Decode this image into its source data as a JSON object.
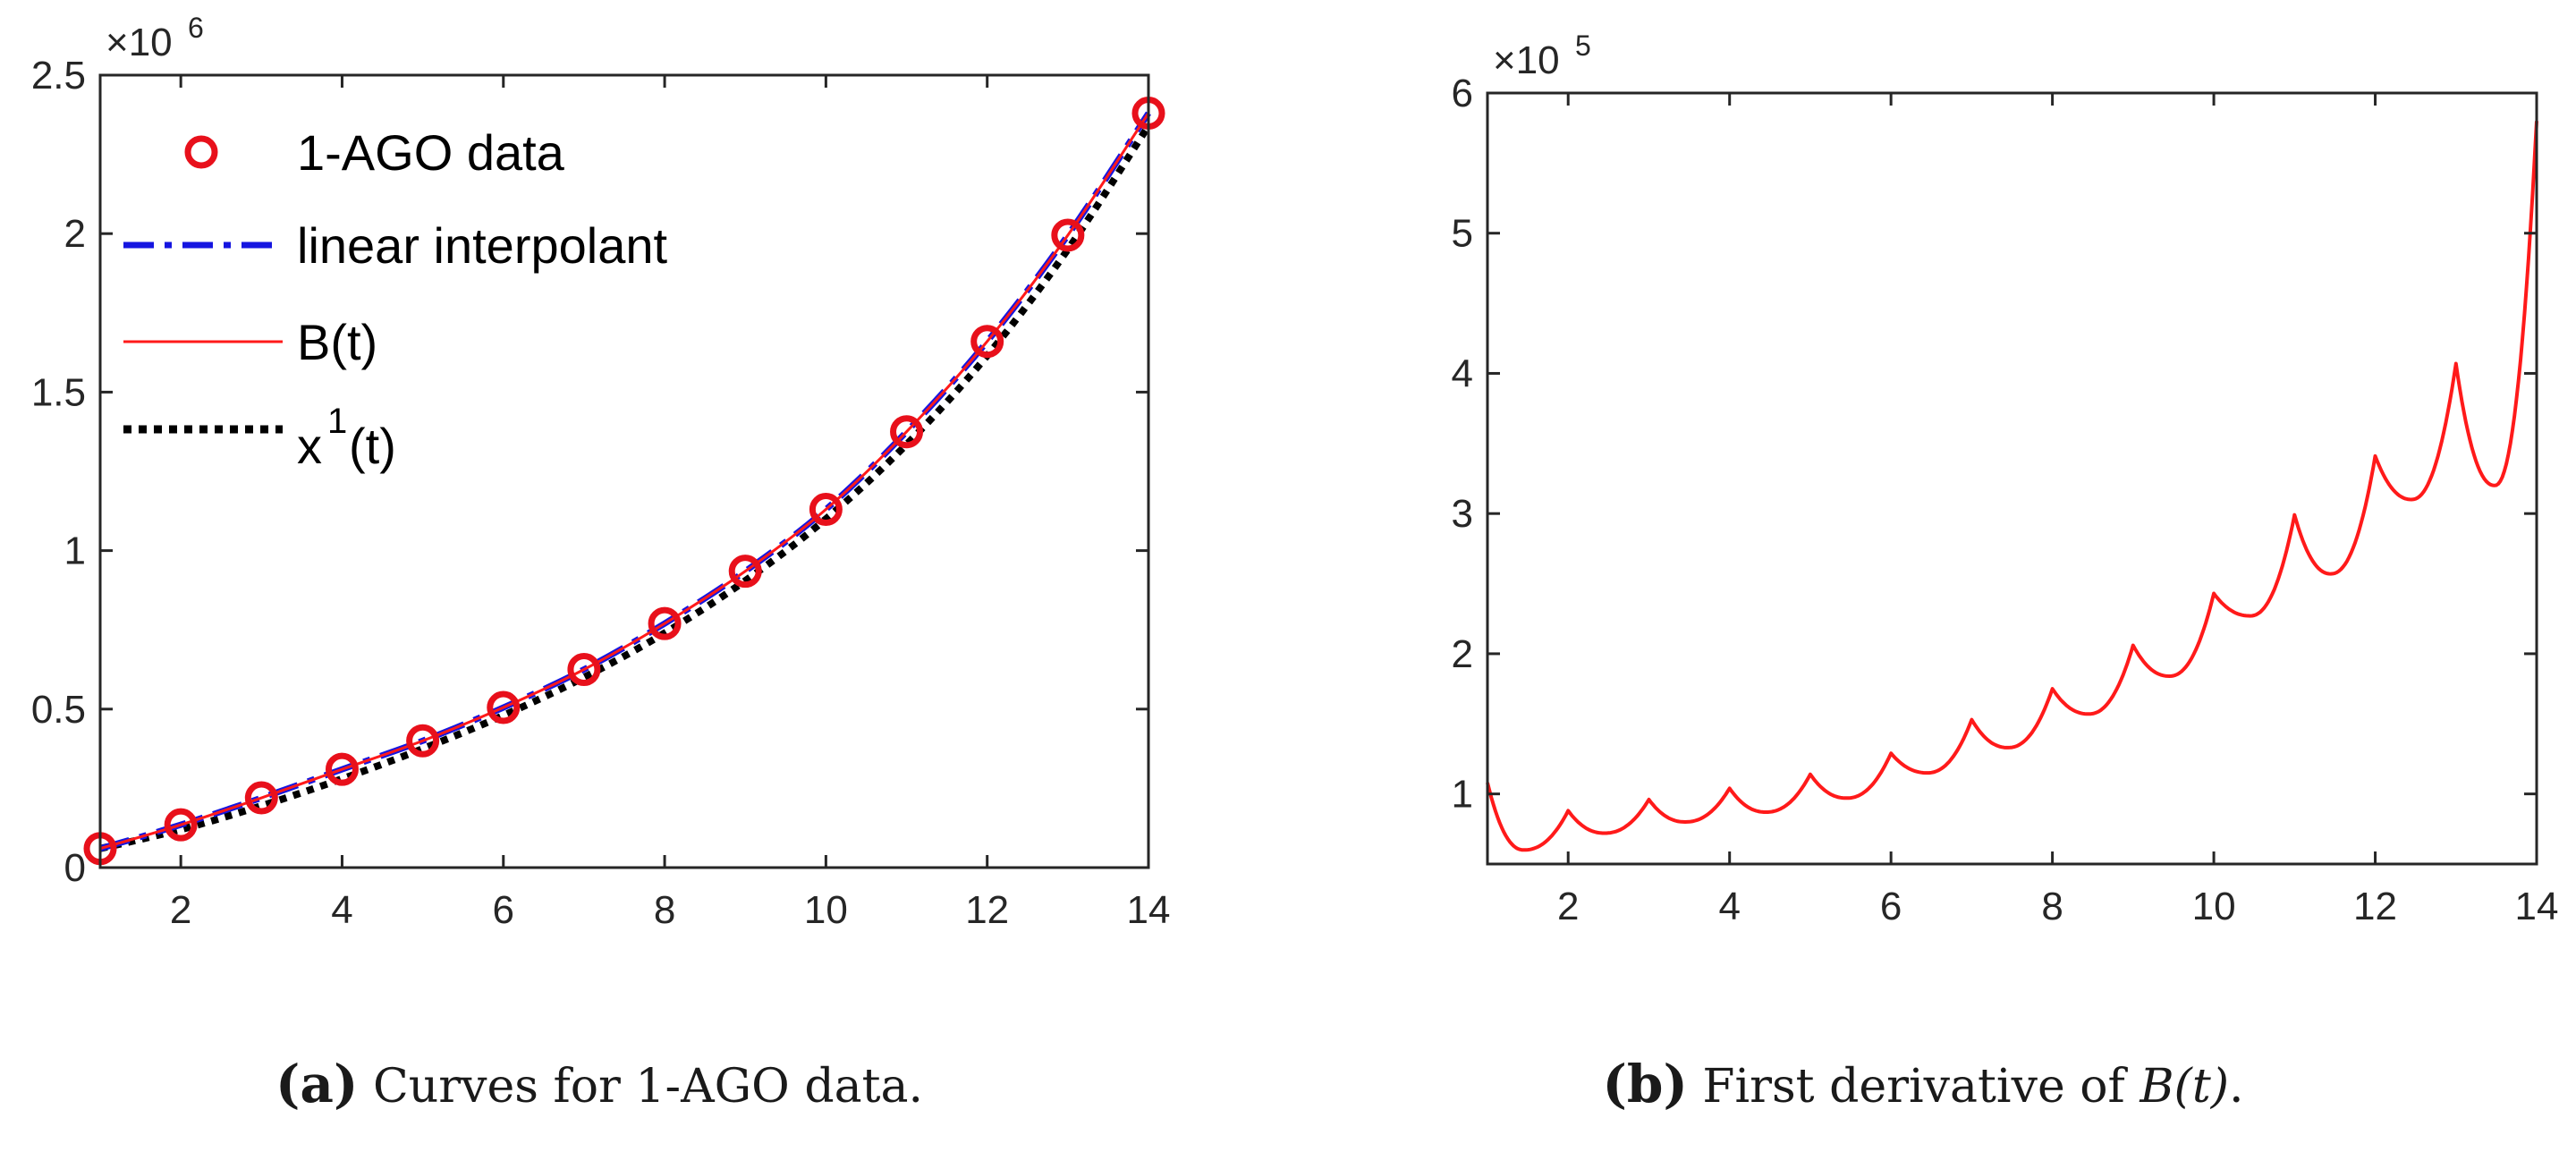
{
  "chart_data": [
    {
      "type": "line",
      "panel": "a",
      "caption": {
        "label": "(a)",
        "text": "Curves for 1-AGO data."
      },
      "xlim": [
        1,
        14
      ],
      "ylim": [
        0,
        2500000
      ],
      "x_ticks": [
        2,
        4,
        6,
        8,
        10,
        12,
        14
      ],
      "y_ticks": [
        0,
        500000,
        1000000,
        1500000,
        2000000,
        2500000
      ],
      "y_tick_labels": [
        "0",
        "0.5",
        "1",
        "1.5",
        "2",
        "2.5"
      ],
      "y_exponent": {
        "base": "×10",
        "power": "6"
      },
      "grid": false,
      "legend": {
        "position": "top-left",
        "box": false
      },
      "series": [
        {
          "name": "1-AGO data",
          "style": "markers",
          "marker": "circle",
          "color": "#e8101b",
          "x": [
            1,
            2,
            3,
            4,
            5,
            6,
            7,
            8,
            9,
            10,
            11,
            12,
            13,
            14
          ],
          "y": [
            60000,
            135000,
            220000,
            310000,
            400000,
            505000,
            625000,
            770000,
            935000,
            1130000,
            1375000,
            1660000,
            1995000,
            2380000
          ]
        },
        {
          "name": "linear interpolant",
          "style": "dashdot",
          "color": "#1515e0",
          "x": [
            1,
            2,
            3,
            4,
            5,
            6,
            7,
            8,
            9,
            10,
            11,
            12,
            13,
            14
          ],
          "y": [
            60000,
            135000,
            220000,
            310000,
            400000,
            505000,
            625000,
            770000,
            935000,
            1130000,
            1375000,
            1660000,
            1995000,
            2380000
          ]
        },
        {
          "name": "B(t)",
          "style": "solid",
          "color": "#ff1a1a",
          "x": [
            1,
            2,
            3,
            4,
            5,
            6,
            7,
            8,
            9,
            10,
            11,
            12,
            13,
            14
          ],
          "y": [
            60000,
            135000,
            220000,
            310000,
            400000,
            505000,
            625000,
            770000,
            935000,
            1130000,
            1375000,
            1660000,
            1995000,
            2380000
          ]
        },
        {
          "name": "x^1(t)",
          "legend_base": "x",
          "legend_sup": "1",
          "legend_tail": "(t)",
          "style": "dotted",
          "color": "#000000",
          "x": [
            1,
            2,
            3,
            4,
            5,
            6,
            7,
            8,
            9,
            10,
            11,
            12,
            13,
            14
          ],
          "y": [
            60000,
            120000,
            195000,
            280000,
            375000,
            480000,
            600000,
            740000,
            905000,
            1100000,
            1335000,
            1615000,
            1950000,
            2340000
          ]
        }
      ]
    },
    {
      "type": "line",
      "panel": "b",
      "caption": {
        "label": "(b)",
        "text_before": "First derivative of ",
        "math": "B(t)",
        "text_after": "."
      },
      "xlim": [
        1,
        14
      ],
      "ylim": [
        50000,
        600000
      ],
      "x_ticks": [
        2,
        4,
        6,
        8,
        10,
        12,
        14
      ],
      "y_ticks": [
        100000,
        200000,
        300000,
        400000,
        500000,
        600000
      ],
      "y_tick_labels": [
        "1",
        "2",
        "3",
        "4",
        "5",
        "6"
      ],
      "y_exponent": {
        "base": "×10",
        "power": "5"
      },
      "grid": false,
      "series": [
        {
          "name": "",
          "style": "solid",
          "color": "#ff1a1a",
          "knot_x": [
            1,
            2,
            3,
            4,
            5,
            6,
            7,
            8,
            9,
            10,
            11,
            12,
            13,
            14
          ],
          "knot_peaks": [
            108000,
            88000,
            96000,
            104000,
            114000,
            129000,
            153000,
            175000,
            206000,
            243000,
            299000,
            341000,
            407000,
            580000
          ],
          "segment_minima": [
            60000,
            72000,
            80000,
            87000,
            97000,
            115000,
            133000,
            157000,
            184000,
            227000,
            257000,
            310000,
            320000
          ]
        }
      ]
    }
  ]
}
